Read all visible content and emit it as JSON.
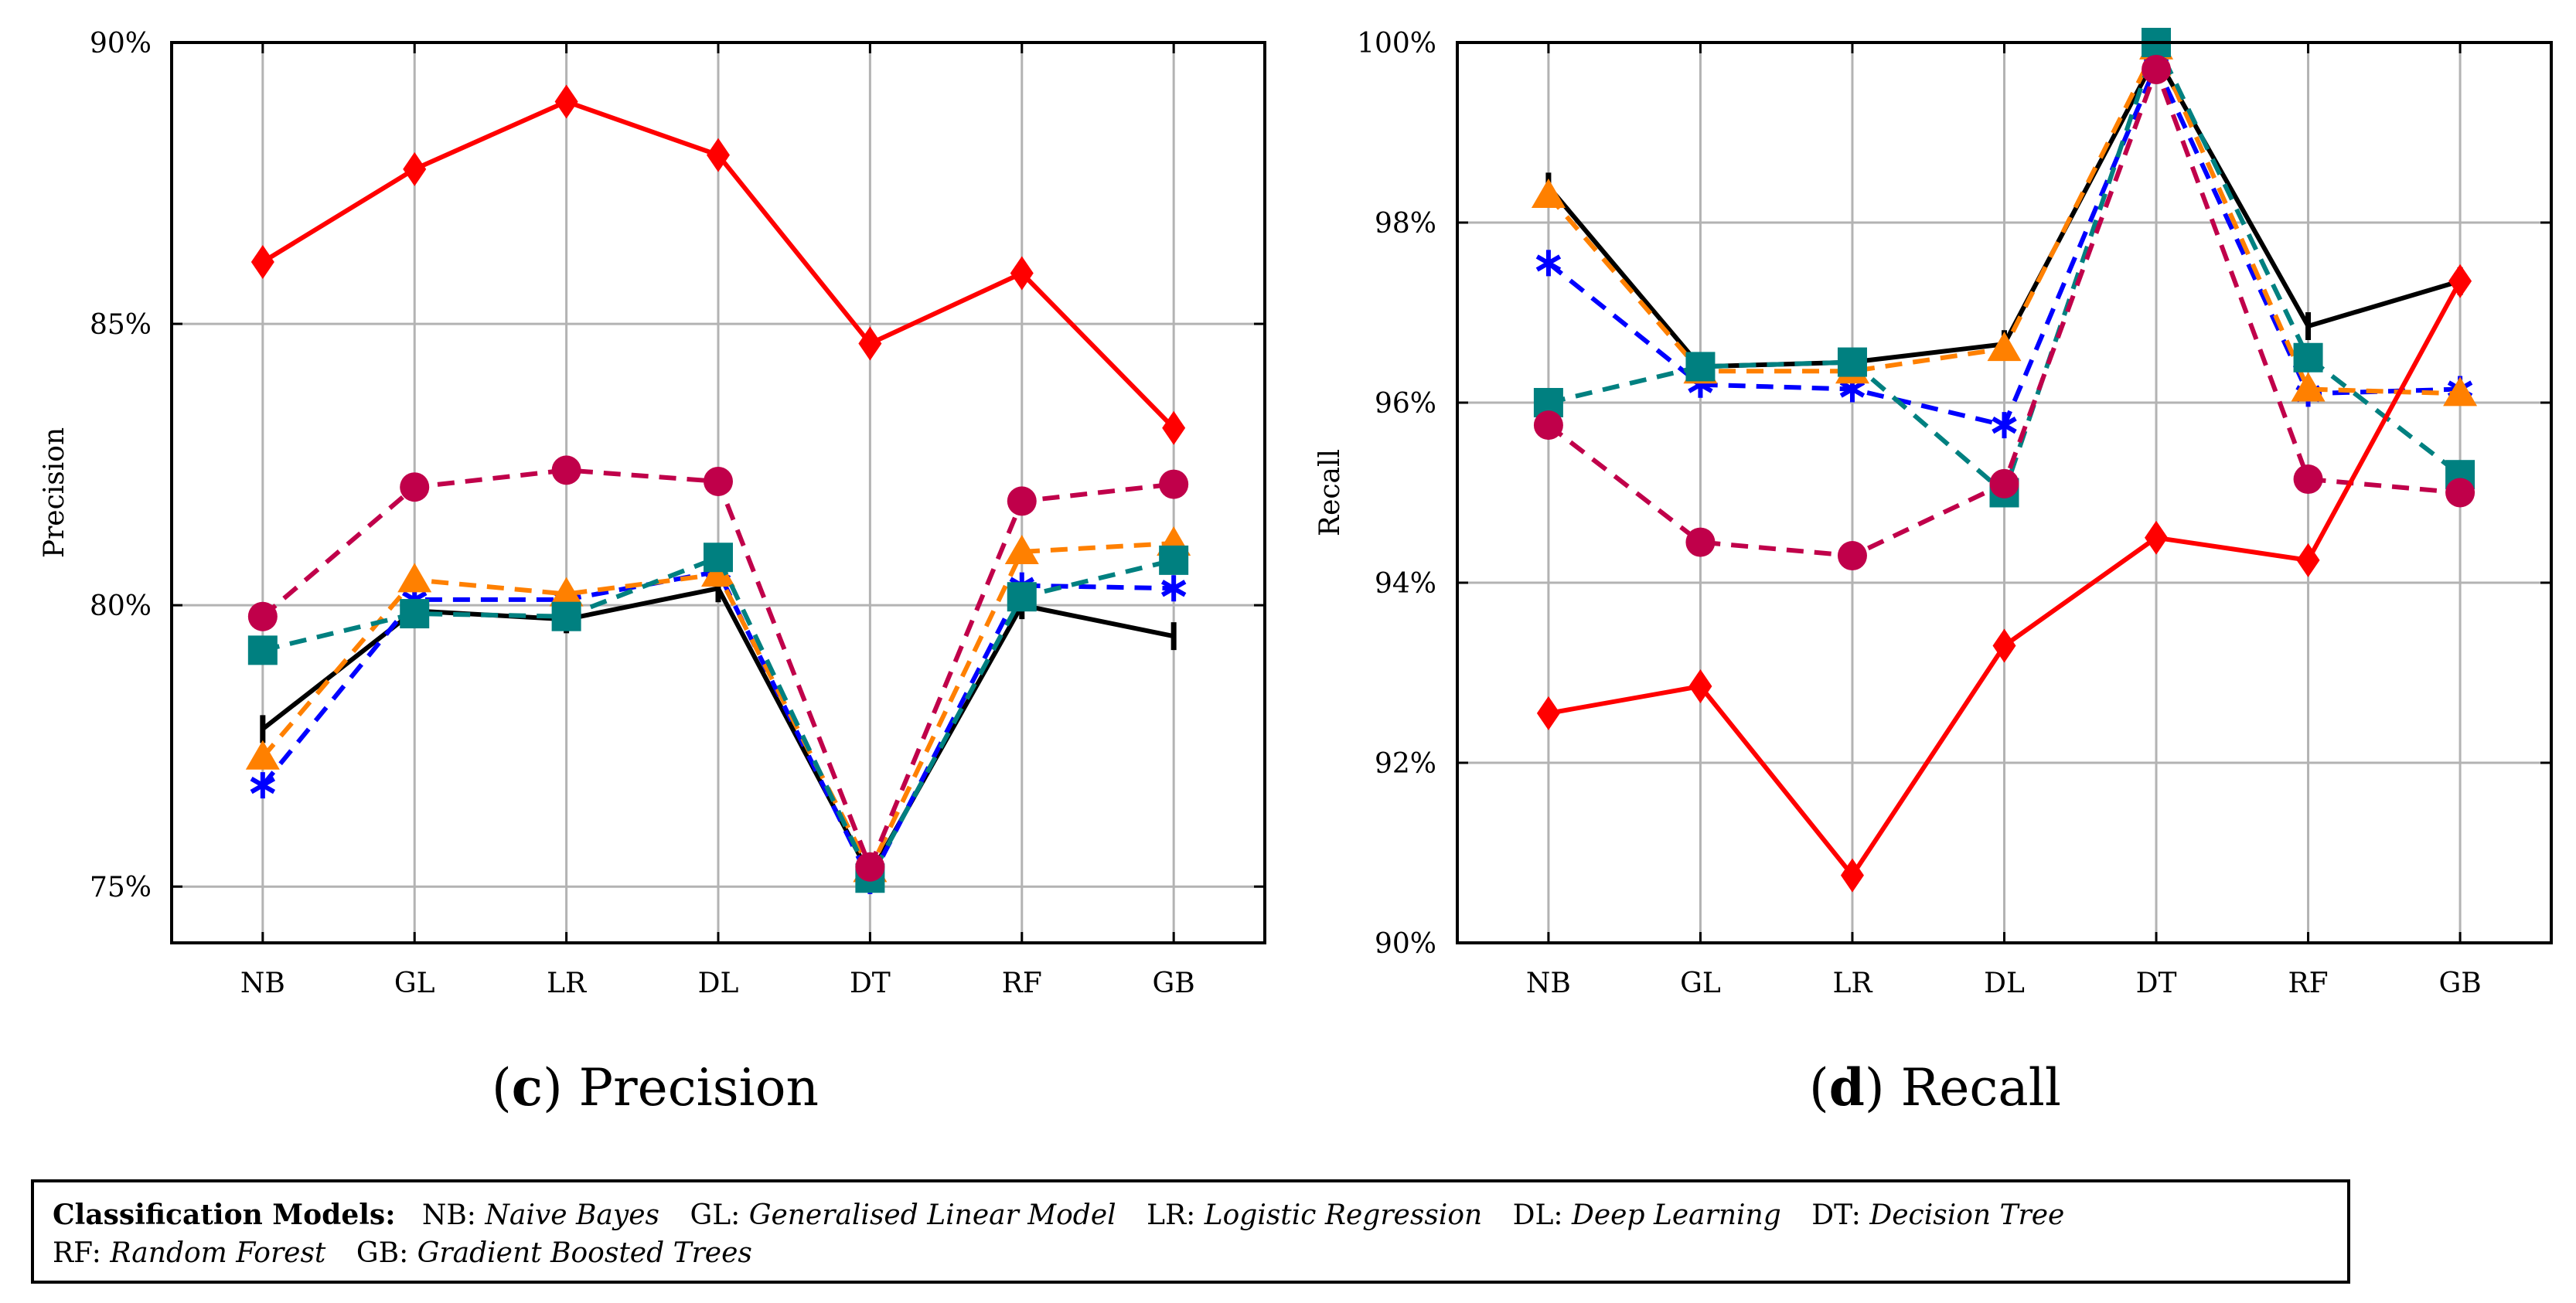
{
  "chart_data": [
    {
      "type": "line",
      "panel_letter": "c",
      "caption": "Precision",
      "ylabel": "Precision",
      "categories": [
        "NB",
        "GL",
        "LR",
        "DL",
        "DT",
        "RF",
        "GB"
      ],
      "ylim": [
        74,
        90
      ],
      "yticks": [
        75,
        80,
        85,
        90
      ],
      "ytick_labels": [
        "75%",
        "80%",
        "85%",
        "90%"
      ],
      "grid": true,
      "series": [
        {
          "color": "#000000",
          "style": "solid",
          "marker": "bar",
          "values": [
            77.8,
            79.9,
            79.75,
            80.3,
            75.2,
            80.0,
            79.45
          ]
        },
        {
          "color": "#0000ff",
          "style": "dashed",
          "marker": "star",
          "values": [
            76.8,
            80.1,
            80.1,
            80.6,
            75.1,
            80.35,
            80.3
          ]
        },
        {
          "color": "#ff8000",
          "style": "dashed",
          "marker": "triangle",
          "values": [
            77.3,
            80.45,
            80.2,
            80.55,
            75.3,
            80.95,
            81.1
          ]
        },
        {
          "color": "#008080",
          "style": "dashed",
          "marker": "square",
          "values": [
            79.2,
            79.85,
            79.8,
            80.85,
            75.15,
            80.15,
            80.8
          ]
        },
        {
          "color": "#c0004a",
          "style": "dashed",
          "marker": "circle",
          "values": [
            79.8,
            82.1,
            82.4,
            82.2,
            75.35,
            81.85,
            82.15
          ]
        },
        {
          "color": "#ff0000",
          "style": "solid",
          "marker": "diamond",
          "values": [
            86.1,
            87.75,
            88.95,
            88.0,
            84.65,
            85.9,
            83.15
          ]
        }
      ]
    },
    {
      "type": "line",
      "panel_letter": "d",
      "caption": "Recall",
      "ylabel": "Recall",
      "categories": [
        "NB",
        "GL",
        "LR",
        "DL",
        "DT",
        "RF",
        "GB"
      ],
      "ylim": [
        90,
        100
      ],
      "yticks": [
        90,
        92,
        94,
        96,
        98,
        100
      ],
      "ytick_labels": [
        "90%",
        "92%",
        "94%",
        "96%",
        "98%",
        "100%"
      ],
      "grid": true,
      "series": [
        {
          "color": "#000000",
          "style": "solid",
          "marker": "bar",
          "values": [
            98.4,
            96.4,
            96.45,
            96.65,
            99.85,
            96.85,
            97.35
          ]
        },
        {
          "color": "#0000ff",
          "style": "dashed",
          "marker": "star",
          "values": [
            97.55,
            96.2,
            96.15,
            95.75,
            99.75,
            96.1,
            96.15
          ]
        },
        {
          "color": "#ff8000",
          "style": "dashed",
          "marker": "triangle",
          "values": [
            98.3,
            96.35,
            96.35,
            96.6,
            99.95,
            96.15,
            96.1
          ]
        },
        {
          "color": "#008080",
          "style": "dashed",
          "marker": "square",
          "values": [
            96.0,
            96.4,
            96.45,
            95.0,
            100.0,
            96.5,
            95.2
          ]
        },
        {
          "color": "#c0004a",
          "style": "dashed",
          "marker": "circle",
          "values": [
            95.75,
            94.45,
            94.3,
            95.1,
            99.7,
            95.15,
            95.0
          ]
        },
        {
          "color": "#ff0000",
          "style": "solid",
          "marker": "diamond",
          "values": [
            92.55,
            92.85,
            90.75,
            93.3,
            94.5,
            94.25,
            97.35
          ]
        }
      ]
    }
  ],
  "legend": {
    "heading": "Classification Models",
    "items": [
      {
        "abbr": "NB",
        "name": "Naive Bayes"
      },
      {
        "abbr": "GL",
        "name": "Generalised Linear Model"
      },
      {
        "abbr": "LR",
        "name": "Logistic Regression"
      },
      {
        "abbr": "DL",
        "name": "Deep Learning"
      },
      {
        "abbr": "DT",
        "name": "Decision Tree"
      },
      {
        "abbr": "RF",
        "name": "Random Forest"
      },
      {
        "abbr": "GB",
        "name": "Gradient Boosted Trees"
      }
    ]
  }
}
